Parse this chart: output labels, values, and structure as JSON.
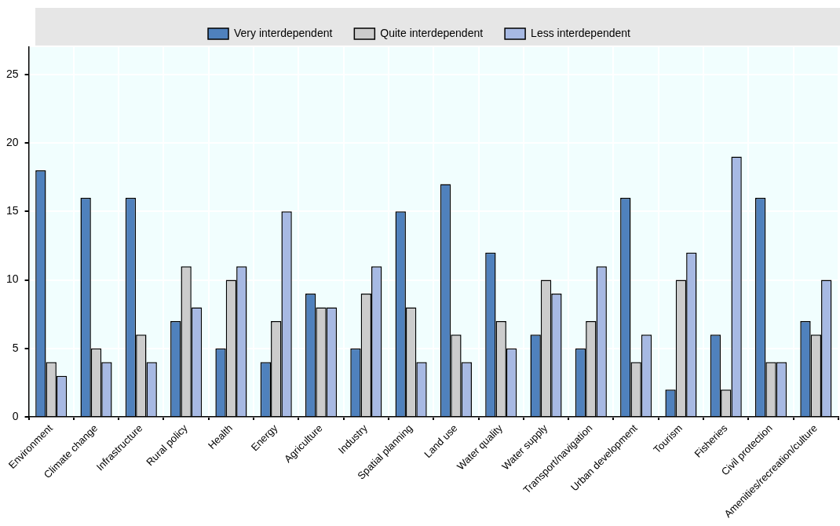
{
  "chart_data": {
    "type": "bar",
    "categories": [
      "Environment",
      "Climate change",
      "Infrastructure",
      "Rural policy",
      "Health",
      "Energy",
      "Agriculture",
      "Industry",
      "Spatial planning",
      "Land use",
      "Water quality",
      "Water supply",
      "Transport/navigation",
      "Urban development",
      "Tourism",
      "Fisheries",
      "Civil protection",
      "Amenities/recreation/culture"
    ],
    "series": [
      {
        "name": "Very interdependent",
        "color": "#4f81bd",
        "values": [
          18,
          16,
          16,
          7,
          5,
          4,
          9,
          5,
          15,
          17,
          12,
          6,
          5,
          16,
          2,
          6,
          16,
          7
        ]
      },
      {
        "name": "Quite interdependent",
        "color": "#cccccc",
        "values": [
          4,
          5,
          6,
          11,
          10,
          7,
          8,
          9,
          8,
          6,
          7,
          10,
          7,
          4,
          10,
          2,
          4,
          6
        ]
      },
      {
        "name": "Less interdependent",
        "color": "#a7b9e3",
        "values": [
          3,
          4,
          4,
          8,
          11,
          15,
          8,
          11,
          4,
          4,
          5,
          9,
          11,
          6,
          12,
          19,
          4,
          10
        ]
      }
    ],
    "ylim": [
      0,
      27
    ],
    "yticks": [
      0,
      5,
      10,
      15,
      20,
      25
    ],
    "grid": true,
    "legend": "top"
  }
}
